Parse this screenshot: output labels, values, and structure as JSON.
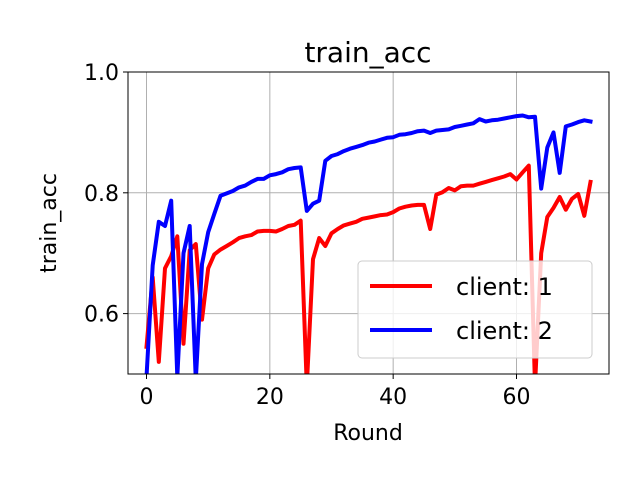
{
  "chart_data": {
    "type": "line",
    "title": "train_acc",
    "xlabel": "Round",
    "ylabel": "train_acc",
    "xlim": [
      -3,
      75
    ],
    "ylim": [
      0.5,
      1.0
    ],
    "xticks": [
      0,
      20,
      40,
      60
    ],
    "xtick_labels": [
      "0",
      "20",
      "40",
      "60"
    ],
    "yticks": [
      0.6,
      0.8,
      1.0
    ],
    "ytick_labels": [
      "0.6",
      "0.8",
      "1.0"
    ],
    "grid": true,
    "legend_position": "lower right",
    "series": [
      {
        "name": "client: 1",
        "color": "#ff0000",
        "x": [
          0,
          1,
          2,
          3,
          4,
          5,
          6,
          7,
          8,
          9,
          10,
          11,
          12,
          13,
          14,
          15,
          16,
          17,
          18,
          19,
          20,
          21,
          22,
          23,
          24,
          25,
          26,
          27,
          28,
          29,
          30,
          31,
          32,
          33,
          34,
          35,
          36,
          37,
          38,
          39,
          40,
          41,
          42,
          43,
          44,
          45,
          46,
          47,
          48,
          49,
          50,
          51,
          52,
          53,
          54,
          55,
          56,
          57,
          58,
          59,
          60,
          61,
          62,
          63,
          64,
          65,
          66,
          67,
          68,
          69,
          70,
          71,
          72
        ],
        "values": [
          0.545,
          0.66,
          0.52,
          0.675,
          0.695,
          0.728,
          0.55,
          0.705,
          0.715,
          0.59,
          0.675,
          0.698,
          0.706,
          0.712,
          0.718,
          0.725,
          0.728,
          0.73,
          0.736,
          0.737,
          0.737,
          0.736,
          0.74,
          0.745,
          0.747,
          0.754,
          0.48,
          0.69,
          0.725,
          0.712,
          0.733,
          0.74,
          0.746,
          0.749,
          0.752,
          0.757,
          0.759,
          0.761,
          0.763,
          0.764,
          0.768,
          0.774,
          0.777,
          0.779,
          0.78,
          0.78,
          0.74,
          0.797,
          0.801,
          0.808,
          0.804,
          0.811,
          0.812,
          0.812,
          0.815,
          0.818,
          0.821,
          0.824,
          0.827,
          0.831,
          0.822,
          0.834,
          0.845,
          0.48,
          0.7,
          0.76,
          0.775,
          0.793,
          0.772,
          0.79,
          0.798,
          0.762,
          0.818
        ]
      },
      {
        "name": "client: 2",
        "color": "#0000ff",
        "x": [
          0,
          1,
          2,
          3,
          4,
          5,
          6,
          7,
          8,
          9,
          10,
          11,
          12,
          13,
          14,
          15,
          16,
          17,
          18,
          19,
          20,
          21,
          22,
          23,
          24,
          25,
          26,
          27,
          28,
          29,
          30,
          31,
          32,
          33,
          34,
          35,
          36,
          37,
          38,
          39,
          40,
          41,
          42,
          43,
          44,
          45,
          46,
          47,
          48,
          49,
          50,
          51,
          52,
          53,
          54,
          55,
          56,
          57,
          58,
          59,
          60,
          61,
          62,
          63,
          64,
          65,
          66,
          67,
          68,
          69,
          70,
          71,
          72
        ],
        "values": [
          0.495,
          0.68,
          0.752,
          0.745,
          0.787,
          0.495,
          0.7,
          0.745,
          0.49,
          0.682,
          0.735,
          0.765,
          0.795,
          0.799,
          0.803,
          0.809,
          0.812,
          0.818,
          0.823,
          0.823,
          0.829,
          0.831,
          0.834,
          0.839,
          0.841,
          0.842,
          0.77,
          0.782,
          0.787,
          0.853,
          0.861,
          0.864,
          0.869,
          0.873,
          0.876,
          0.879,
          0.883,
          0.885,
          0.888,
          0.891,
          0.892,
          0.896,
          0.897,
          0.899,
          0.902,
          0.903,
          0.899,
          0.903,
          0.904,
          0.905,
          0.909,
          0.911,
          0.913,
          0.915,
          0.922,
          0.918,
          0.92,
          0.921,
          0.923,
          0.925,
          0.927,
          0.928,
          0.925,
          0.926,
          0.807,
          0.875,
          0.9,
          0.833,
          0.91,
          0.913,
          0.917,
          0.92,
          0.918
        ]
      }
    ]
  }
}
